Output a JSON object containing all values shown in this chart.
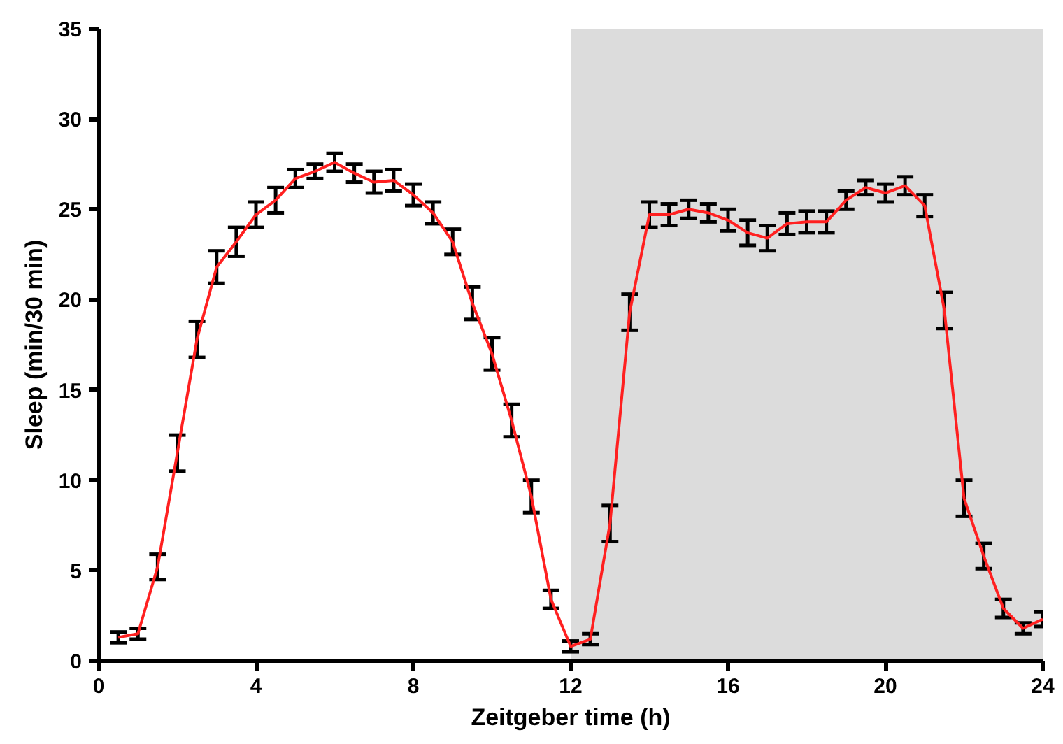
{
  "chart_data": {
    "type": "line",
    "xlabel": "Zeitgeber time (h)",
    "ylabel": "Sleep (min/30 min)",
    "x": [
      0.5,
      1,
      1.5,
      2,
      2.5,
      3,
      3.5,
      4,
      4.5,
      5,
      5.5,
      6,
      6.5,
      7,
      7.5,
      8,
      8.5,
      9,
      9.5,
      10,
      10.5,
      11,
      11.5,
      12,
      12.5,
      13,
      13.5,
      14,
      14.5,
      15,
      15.5,
      16,
      16.5,
      17,
      17.5,
      18,
      18.5,
      19,
      19.5,
      20,
      20.5,
      21,
      21.5,
      22,
      22.5,
      23,
      23.5,
      24
    ],
    "series": [
      {
        "color": "#ff2020",
        "values": [
          1.3,
          1.5,
          5.2,
          11.5,
          17.8,
          21.8,
          23.2,
          24.7,
          25.5,
          26.7,
          27.1,
          27.6,
          27.0,
          26.5,
          26.6,
          25.8,
          24.8,
          23.2,
          19.8,
          17.0,
          13.3,
          9.1,
          3.4,
          0.8,
          1.2,
          7.6,
          19.3,
          24.7,
          24.7,
          25.0,
          24.8,
          24.4,
          23.7,
          23.4,
          24.2,
          24.3,
          24.3,
          25.5,
          26.2,
          25.9,
          26.3,
          25.2,
          19.4,
          9.0,
          5.8,
          2.9,
          1.8,
          2.3
        ],
        "errors": [
          0.3,
          0.3,
          0.7,
          1.0,
          1.0,
          0.9,
          0.8,
          0.7,
          0.7,
          0.5,
          0.4,
          0.5,
          0.5,
          0.6,
          0.6,
          0.6,
          0.6,
          0.7,
          0.9,
          0.9,
          0.9,
          0.9,
          0.5,
          0.3,
          0.3,
          1.0,
          1.0,
          0.7,
          0.6,
          0.5,
          0.5,
          0.6,
          0.7,
          0.7,
          0.6,
          0.6,
          0.6,
          0.5,
          0.4,
          0.5,
          0.5,
          0.6,
          1.0,
          1.0,
          0.7,
          0.5,
          0.3,
          0.4
        ]
      }
    ],
    "xlim": [
      0,
      24
    ],
    "ylim": [
      0,
      35
    ],
    "xticks": [
      0,
      4,
      8,
      12,
      16,
      20,
      24
    ],
    "yticks": [
      0,
      5,
      10,
      15,
      20,
      25,
      30,
      35
    ],
    "bands": [
      {
        "axis": "x",
        "from": 12,
        "to": 24,
        "color": "#dcdcdc"
      }
    ],
    "grid": false,
    "marker": "none",
    "line_style": "solid"
  }
}
